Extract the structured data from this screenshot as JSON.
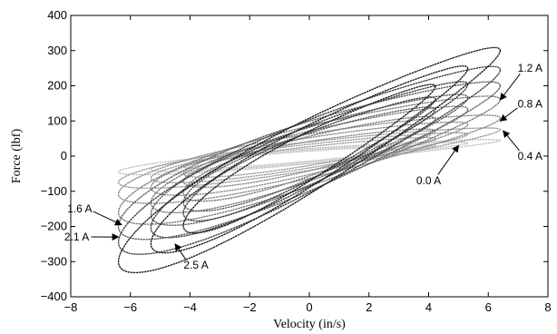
{
  "chart_data": {
    "type": "scatter",
    "title": "",
    "xlabel": "Velocity (in/s)",
    "ylabel": "Force (lbf)",
    "xlim": [
      -8,
      8
    ],
    "ylim": [
      -400,
      400
    ],
    "xticks": [
      -8,
      -6,
      -4,
      -2,
      0,
      2,
      4,
      6,
      8
    ],
    "xtick_labels": [
      "−8",
      "−6",
      "−4",
      "−2",
      "0",
      "2",
      "4",
      "6",
      "8"
    ],
    "yticks": [
      -400,
      -300,
      -200,
      -100,
      0,
      100,
      200,
      300,
      400
    ],
    "ytick_labels": [
      "−400",
      "−300",
      "−200",
      "−100",
      "0",
      "100",
      "200",
      "300",
      "400"
    ],
    "grid": false,
    "legend": "none",
    "series": [
      {
        "name": "0.0 A",
        "color": "#c4c4c4",
        "vmax": 6.4,
        "fmax": 45,
        "offset": 24,
        "loops": 3
      },
      {
        "name": "0.4 A",
        "color": "#9a9a9a",
        "vmax": 6.4,
        "fmax": 75,
        "offset": 45,
        "loops": 3
      },
      {
        "name": "0.8 A",
        "color": "#8a8a8a",
        "vmax": 6.4,
        "fmax": 108,
        "offset": 70,
        "loops": 3
      },
      {
        "name": "1.2 A",
        "color": "#7a7a7a",
        "vmax": 6.4,
        "fmax": 160,
        "offset": 95,
        "loops": 3
      },
      {
        "name": "1.6 A",
        "color": "#5e5e5e",
        "vmax": 6.4,
        "fmax": 200,
        "offset": 110,
        "loops": 3
      },
      {
        "name": "2.1 A",
        "color": "#3c3c3c",
        "vmax": 6.4,
        "fmax": 245,
        "offset": 115,
        "loops": 3
      },
      {
        "name": "2.5 A",
        "color": "#181818",
        "vmax": 6.4,
        "fmax": 300,
        "offset": 120,
        "loops": 3
      }
    ],
    "annotations": [
      {
        "text": "1.2 A",
        "label_x": 7.4,
        "label_y": 240,
        "arrow_x": 6.4,
        "arrow_y": 160
      },
      {
        "text": "0.8 A",
        "label_x": 7.4,
        "label_y": 138,
        "arrow_x": 6.4,
        "arrow_y": 100
      },
      {
        "text": "0.4 A",
        "label_x": 7.4,
        "label_y": -10,
        "arrow_x": 6.5,
        "arrow_y": 72
      },
      {
        "text": "0.0 A",
        "label_x": 4.0,
        "label_y": -80,
        "arrow_x": 5.0,
        "arrow_y": 30
      },
      {
        "text": "1.6 A",
        "label_x": -7.7,
        "label_y": -160,
        "arrow_x": -6.3,
        "arrow_y": -195
      },
      {
        "text": "2.1 A",
        "label_x": -7.8,
        "label_y": -240,
        "arrow_x": -6.4,
        "arrow_y": -230
      },
      {
        "text": "2.5 A",
        "label_x": -3.8,
        "label_y": -320,
        "arrow_x": -4.5,
        "arrow_y": -250
      }
    ]
  }
}
